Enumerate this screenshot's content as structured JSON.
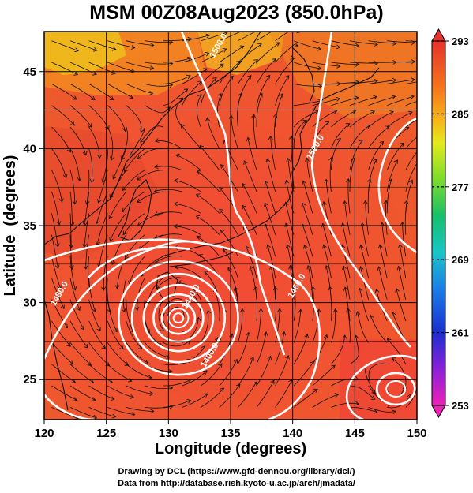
{
  "title": "MSM 00Z08Aug2023 (850.0hPa)",
  "chart_data": {
    "type": "map",
    "xlabel": "Longitude (degrees)",
    "ylabel": "Latitude  (degrees)",
    "xlim": [
      120,
      150
    ],
    "ylim": [
      22.4,
      47.6
    ],
    "x_ticks": [
      "120",
      "125",
      "130",
      "135",
      "140",
      "145",
      "150"
    ],
    "y_ticks": [
      "25",
      "30",
      "35",
      "40",
      "45"
    ],
    "grid": true,
    "colorbar": {
      "ticks": [
        "293",
        "285",
        "277",
        "269",
        "261",
        "253"
      ],
      "range": [
        253,
        293
      ]
    },
    "contour_labels": [
      {
        "text": "1500.0",
        "lon": 134.2,
        "lat": 46.6
      },
      {
        "text": "1520.0",
        "lon": 142.0,
        "lat": 40.0
      },
      {
        "text": "1480.0",
        "lon": 121.4,
        "lat": 30.5
      },
      {
        "text": "1440.0",
        "lon": 132.0,
        "lat": 30.3
      },
      {
        "text": "1460.0",
        "lon": 140.5,
        "lat": 31.0
      },
      {
        "text": "1400.0",
        "lon": 133.5,
        "lat": 26.5
      }
    ],
    "typhoon_center": {
      "lon": 130.8,
      "lat": 29.0
    },
    "secondary_low": {
      "lon": 148.3,
      "lat": 24.4
    }
  },
  "credits": {
    "line1": "Drawing by DCL (https://www.gfd-dennou.org/library/dcl/)",
    "line2": "Data from http://database.rish.kyoto-u.ac.jp/arch/jmadata/"
  }
}
